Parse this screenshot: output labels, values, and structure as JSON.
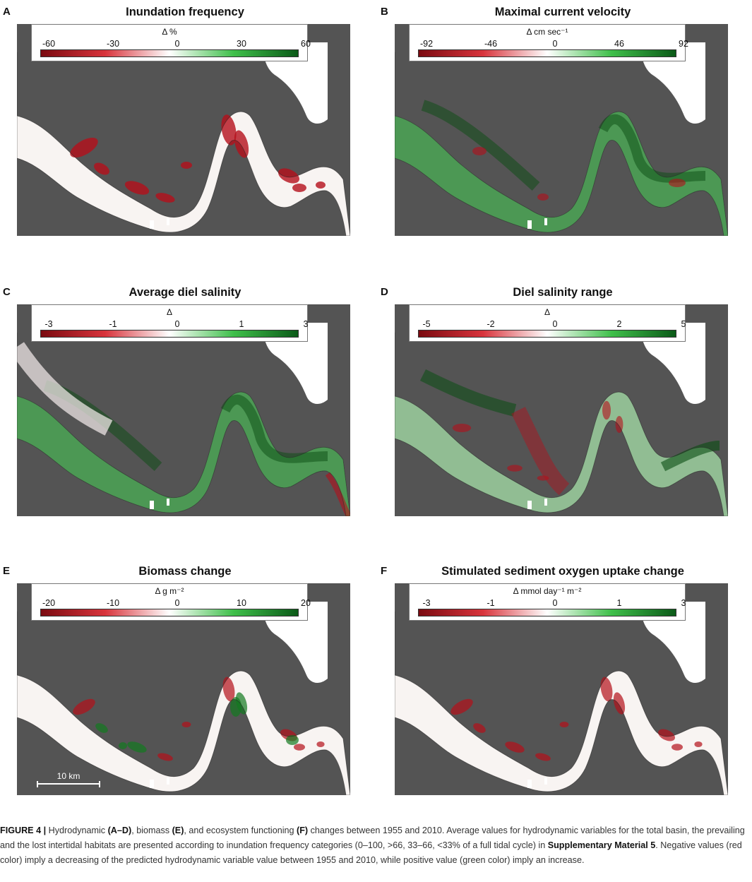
{
  "colors": {
    "land": "#545454",
    "water": "#ffffff",
    "negative": "#b40f1a",
    "positive": "#13791f",
    "neutral": "#f8f4f2"
  },
  "panels": [
    {
      "letter": "A",
      "title": "Inundation frequency",
      "unit": "Δ %",
      "ticks": [
        "-60",
        "-30",
        "0",
        "30",
        "60"
      ],
      "pattern": "red-bars"
    },
    {
      "letter": "B",
      "title": "Maximal current velocity",
      "unit": "Δ cm sec⁻¹",
      "ticks": [
        "-92",
        "-46",
        "0",
        "46",
        "92"
      ],
      "pattern": "green-flood"
    },
    {
      "letter": "C",
      "title": "Average diel salinity",
      "unit": "Δ",
      "ticks": [
        "-3",
        "-1",
        "0",
        "1",
        "3"
      ],
      "pattern": "green-flood-c"
    },
    {
      "letter": "D",
      "title": "Diel salinity range",
      "unit": "Δ",
      "ticks": [
        "-5",
        "-2",
        "0",
        "2",
        "5"
      ],
      "pattern": "mixed"
    },
    {
      "letter": "E",
      "title": "Biomass change",
      "unit": "Δ g m⁻²",
      "ticks": [
        "-20",
        "-10",
        "0",
        "10",
        "20"
      ],
      "pattern": "speckle"
    },
    {
      "letter": "F",
      "title": "Stimulated sediment oxygen uptake change",
      "unit": "Δ mmol day⁻¹ m⁻²",
      "ticks": [
        "-3",
        "-1",
        "0",
        "1",
        "3"
      ],
      "pattern": "speckle-red"
    }
  ],
  "scalebar": {
    "label": "10 km"
  },
  "caption": {
    "figure_label": "FIGURE 4 |",
    "t1": " Hydrodynamic ",
    "b1": "(A–D)",
    "t2": ", biomass ",
    "b2": "(E)",
    "t3": ", and ecosystem functioning ",
    "b3": "(F)",
    "t4": " changes between 1955 and 2010. Average values for hydrodynamic variables for the total basin, the prevailing and the lost intertidal habitats are presented according to inundation frequency categories (0–100, >66, 33–66, <33% of a full tidal cycle) in ",
    "b4": "Supplementary Material 5",
    "t5": ". Negative values (red color) imply a decreasing of the predicted hydrodynamic variable value between 1955 and 2010, while positive value (green color) imply an increase."
  }
}
